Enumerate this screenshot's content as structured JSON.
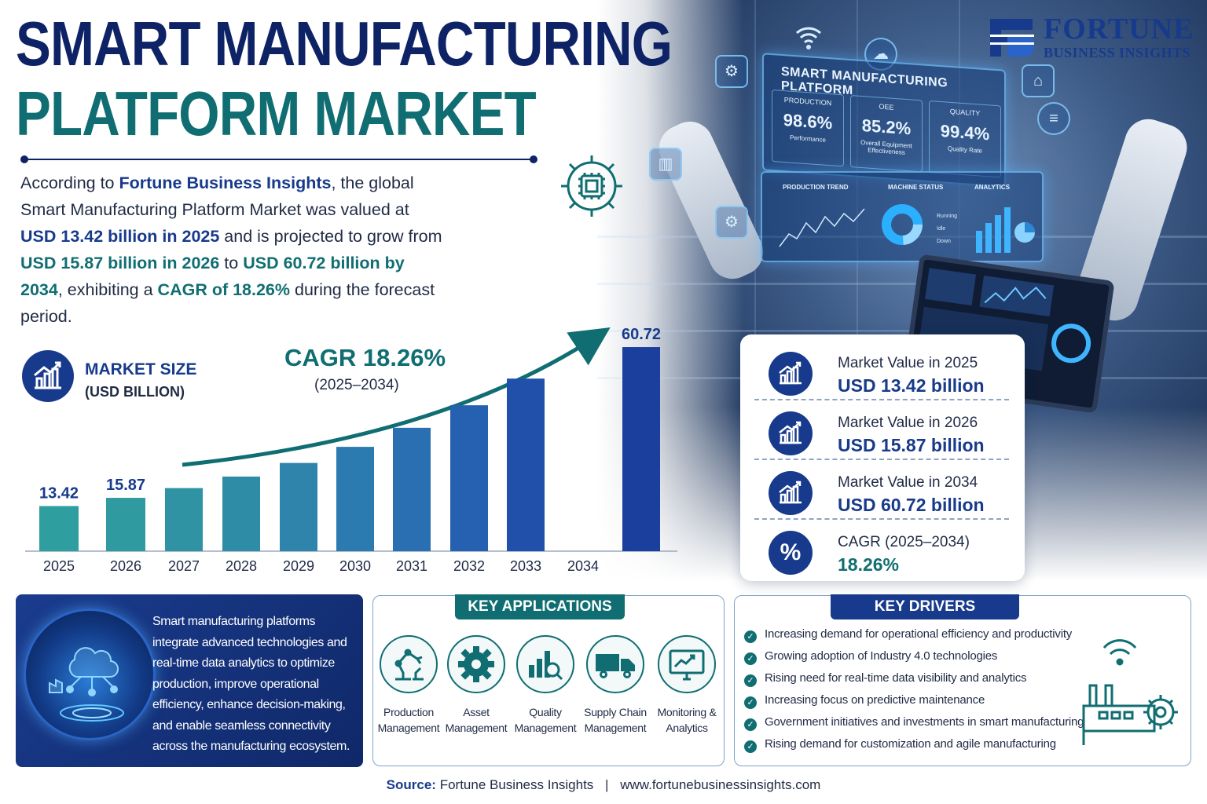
{
  "brand": {
    "name": "FORTUNE",
    "tagline": "BUSINESS INSIGHTS",
    "primary_color": "#173a8c",
    "accent_color": "#106e72"
  },
  "title": {
    "line1": "SMART MANUFACTURING",
    "line2": "PLATFORM MARKET"
  },
  "intro": {
    "p1": "According to ",
    "source": "Fortune Business Insights",
    "p2": ", the global Smart Manufacturing Platform Market was valued at ",
    "v2025": "USD 13.42 billion in 2025",
    "p3": " and is projected to grow from ",
    "v2026": "USD 15.87 billion in 2026",
    "p4": " to ",
    "v2034": "USD 60.72 billion by 2034",
    "p5": ", exhibiting a ",
    "cagr": "CAGR of 18.26%",
    "p6": " during the forecast period."
  },
  "chart_header": {
    "label": "MARKET SIZE",
    "unit": "(USD BILLION)",
    "cagr": "CAGR 18.26%",
    "cagr_range": "(2025–2034)"
  },
  "chart_data": {
    "type": "bar",
    "categories": [
      "2025",
      "2026",
      "2027",
      "2028",
      "2029",
      "2030",
      "2031",
      "2032",
      "2033",
      "2034"
    ],
    "values": [
      13.42,
      15.87,
      18.77,
      22.2,
      26.25,
      31.04,
      36.71,
      43.41,
      51.34,
      60.72
    ],
    "data_labels": [
      "13.42",
      "15.87",
      "",
      "",
      "",
      "",
      "",
      "",
      "",
      "60.72"
    ],
    "ylim": [
      0,
      64
    ],
    "colors": [
      "#2e9e9e",
      "#2f9a9f",
      "#2f93a3",
      "#2f8ca7",
      "#2f84ab",
      "#2c7bb0",
      "#2a6fb2",
      "#2660b0",
      "#2050aa",
      "#1a3f9d"
    ]
  },
  "dashboard": {
    "title": "SMART MANUFACTURING PLATFORM",
    "kpis": [
      {
        "label": "PRODUCTION",
        "value": "98.6%",
        "sub": "Performance"
      },
      {
        "label": "OEE",
        "value": "85.2%",
        "sub": "Overall Equipment Effectiveness"
      },
      {
        "label": "QUALITY",
        "value": "99.4%",
        "sub": "Quality Rate"
      }
    ],
    "panels": [
      "PRODUCTION TREND",
      "MACHINE STATUS",
      "ANALYTICS"
    ],
    "status_legend": [
      "Running",
      "Idle",
      "Down"
    ]
  },
  "stats": [
    {
      "label": "Market Value in 2025",
      "value": "USD 13.42 billion",
      "icon": "chart-up-icon"
    },
    {
      "label": "Market Value in 2026",
      "value": "USD 15.87 billion",
      "icon": "chart-up-icon"
    },
    {
      "label": "Market Value in 2034",
      "value": "USD 60.72 billion",
      "icon": "chart-up-icon"
    },
    {
      "label": "CAGR (2025–2034)",
      "value": "18.26%",
      "icon": "percent-icon",
      "symbol": "%"
    }
  ],
  "about": {
    "text": "Smart manufacturing platforms integrate advanced technologies and real-time data analytics to optimize production, improve operational efficiency, enhance decision-making, and enable seamless connectivity across the manufacturing ecosystem."
  },
  "applications": {
    "title": "KEY APPLICATIONS",
    "items": [
      {
        "line1": "Production",
        "line2": "Management",
        "icon": "robot-arm-icon"
      },
      {
        "line1": "Asset",
        "line2": "Management",
        "icon": "gear-icon"
      },
      {
        "line1": "Quality",
        "line2": "Management",
        "icon": "magnifier-chart-icon"
      },
      {
        "line1": "Supply Chain",
        "line2": "Management",
        "icon": "truck-icon"
      },
      {
        "line1": "Monitoring &",
        "line2": "Analytics",
        "icon": "monitor-chart-icon"
      }
    ]
  },
  "drivers": {
    "title": "KEY DRIVERS",
    "items": [
      "Increasing demand for operational efficiency and productivity",
      "Growing adoption of Industry 4.0 technologies",
      "Rising need for real-time data visibility and analytics",
      "Increasing focus on predictive maintenance",
      "Government initiatives and investments in smart manufacturing",
      "Rising demand for customization and agile manufacturing"
    ]
  },
  "footer": {
    "source_label": "Source:",
    "source": "Fortune Business Insights",
    "separator": "|",
    "url": "www.fortunebusinessinsights.com"
  }
}
